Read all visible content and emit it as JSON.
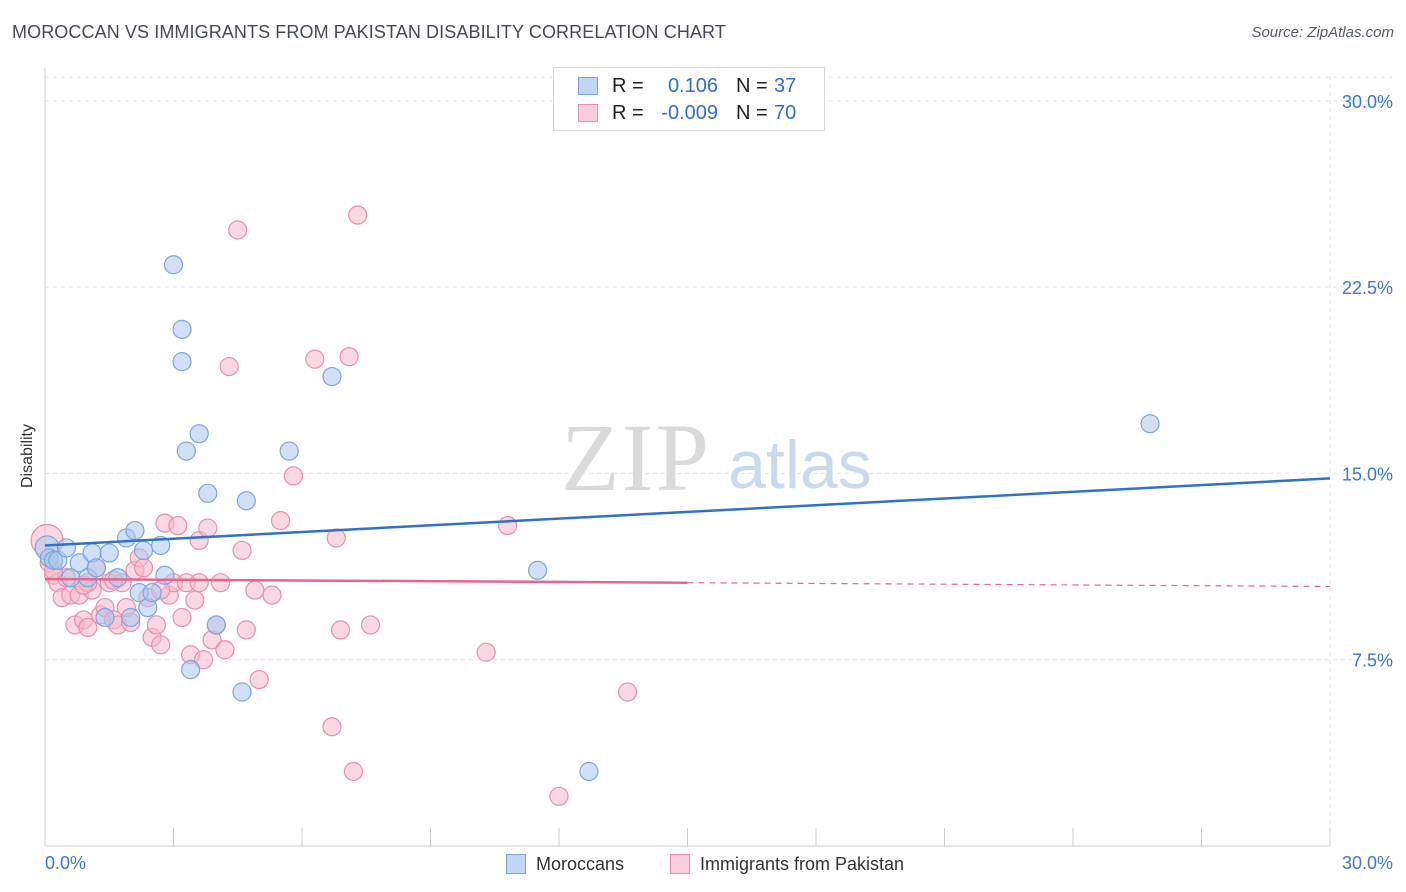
{
  "title": "MOROCCAN VS IMMIGRANTS FROM PAKISTAN DISABILITY CORRELATION CHART",
  "source": "Source: ZipAtlas.com",
  "watermark": {
    "zip": "ZIP",
    "atlas": "atlas"
  },
  "legend": {
    "r_label": "R =",
    "n_label": "N =",
    "rows": [
      {
        "name": "Moroccans",
        "r": "0.106",
        "n": "37"
      },
      {
        "name": "Immigrants from Pakistan",
        "r": "-0.009",
        "n": "70"
      }
    ]
  },
  "colors": {
    "blue_fill": "#a9c8ef",
    "blue_stroke": "#7aa6df",
    "blue_line": "#2f72c9",
    "pink_fill": "#f5b8ca",
    "pink_stroke": "#ea8eab",
    "pink_line": "#e8648f",
    "tick_text": "#3a78cc",
    "grid": "#dfe3e8"
  },
  "chart_data": {
    "type": "scatter",
    "title": "MOROCCAN VS IMMIGRANTS FROM PAKISTAN DISABILITY CORRELATION CHART",
    "xlabel": "",
    "ylabel": "Disability",
    "xlim": [
      0,
      30
    ],
    "ylim": [
      0,
      31
    ],
    "x_tick_labels": [
      "0.0%",
      "30.0%"
    ],
    "y_ticks": [
      7.5,
      15.0,
      22.5,
      30.0
    ],
    "y_tick_labels": [
      "7.5%",
      "15.0%",
      "22.5%",
      "30.0%"
    ],
    "series": [
      {
        "name": "Moroccans",
        "r": 0.106,
        "n": 37,
        "trend": {
          "x": [
            0,
            30
          ],
          "y": [
            12.1,
            14.8
          ],
          "dashed_from": null
        },
        "points": [
          [
            0.05,
            12.0
          ],
          [
            0.1,
            11.6
          ],
          [
            0.2,
            11.5
          ],
          [
            0.3,
            11.5
          ],
          [
            0.5,
            12.0
          ],
          [
            0.6,
            10.8
          ],
          [
            0.8,
            11.4
          ],
          [
            1.0,
            10.8
          ],
          [
            1.1,
            11.8
          ],
          [
            1.2,
            11.2
          ],
          [
            1.4,
            9.2
          ],
          [
            1.5,
            11.8
          ],
          [
            1.7,
            10.8
          ],
          [
            1.9,
            12.4
          ],
          [
            2.0,
            9.2
          ],
          [
            2.1,
            12.7
          ],
          [
            2.2,
            10.2
          ],
          [
            2.3,
            11.9
          ],
          [
            2.4,
            9.6
          ],
          [
            2.5,
            10.2
          ],
          [
            2.7,
            12.1
          ],
          [
            2.8,
            10.9
          ],
          [
            3.0,
            23.4
          ],
          [
            3.2,
            19.5
          ],
          [
            3.2,
            20.8
          ],
          [
            3.3,
            15.9
          ],
          [
            3.4,
            7.1
          ],
          [
            3.6,
            16.6
          ],
          [
            3.8,
            14.2
          ],
          [
            4.0,
            8.9
          ],
          [
            4.6,
            6.2
          ],
          [
            4.7,
            13.9
          ],
          [
            5.7,
            15.9
          ],
          [
            6.7,
            18.9
          ],
          [
            11.5,
            11.1
          ],
          [
            12.7,
            3.0
          ],
          [
            25.8,
            17.0
          ]
        ]
      },
      {
        "name": "Immigrants from Pakistan",
        "r": -0.009,
        "n": 70,
        "trend": {
          "x": [
            0,
            30
          ],
          "y": [
            10.75,
            10.45
          ],
          "dashed_from": 15
        },
        "points": [
          [
            0.05,
            12.3
          ],
          [
            0.1,
            11.4
          ],
          [
            0.2,
            10.9
          ],
          [
            0.3,
            10.6
          ],
          [
            0.4,
            10.0
          ],
          [
            0.5,
            10.8
          ],
          [
            0.6,
            10.1
          ],
          [
            0.7,
            8.9
          ],
          [
            0.8,
            10.1
          ],
          [
            0.9,
            9.1
          ],
          [
            1.0,
            8.8
          ],
          [
            1.1,
            10.3
          ],
          [
            1.2,
            11.2
          ],
          [
            1.3,
            9.3
          ],
          [
            1.4,
            9.6
          ],
          [
            1.5,
            10.6
          ],
          [
            1.6,
            9.1
          ],
          [
            1.7,
            8.9
          ],
          [
            1.8,
            10.6
          ],
          [
            1.9,
            9.6
          ],
          [
            2.0,
            9.0
          ],
          [
            2.1,
            11.1
          ],
          [
            2.2,
            11.6
          ],
          [
            2.3,
            11.2
          ],
          [
            2.4,
            10.0
          ],
          [
            2.5,
            8.4
          ],
          [
            2.6,
            8.9
          ],
          [
            2.7,
            8.1
          ],
          [
            2.8,
            13.0
          ],
          [
            2.9,
            10.1
          ],
          [
            3.0,
            10.6
          ],
          [
            3.1,
            12.9
          ],
          [
            3.2,
            9.2
          ],
          [
            3.3,
            10.6
          ],
          [
            3.4,
            7.7
          ],
          [
            3.5,
            9.9
          ],
          [
            3.6,
            12.3
          ],
          [
            3.7,
            7.5
          ],
          [
            3.8,
            12.8
          ],
          [
            3.9,
            8.3
          ],
          [
            4.0,
            8.9
          ],
          [
            4.2,
            7.9
          ],
          [
            4.3,
            19.3
          ],
          [
            4.5,
            24.8
          ],
          [
            4.6,
            11.9
          ],
          [
            4.7,
            8.7
          ],
          [
            4.9,
            10.3
          ],
          [
            5.0,
            6.7
          ],
          [
            5.3,
            10.1
          ],
          [
            5.5,
            13.1
          ],
          [
            5.8,
            14.9
          ],
          [
            6.3,
            19.6
          ],
          [
            6.7,
            4.8
          ],
          [
            6.8,
            12.4
          ],
          [
            6.9,
            8.7
          ],
          [
            7.1,
            19.7
          ],
          [
            7.2,
            3.0
          ],
          [
            7.3,
            25.4
          ],
          [
            7.6,
            8.9
          ],
          [
            10.3,
            7.8
          ],
          [
            10.8,
            12.9
          ],
          [
            12.0,
            2.0
          ],
          [
            13.6,
            6.2
          ],
          [
            1.0,
            10.6
          ],
          [
            1.6,
            10.7
          ],
          [
            2.7,
            10.3
          ],
          [
            3.6,
            10.6
          ],
          [
            4.1,
            10.6
          ],
          [
            0.2,
            11.1
          ],
          [
            0.9,
            10.5
          ]
        ]
      }
    ]
  }
}
